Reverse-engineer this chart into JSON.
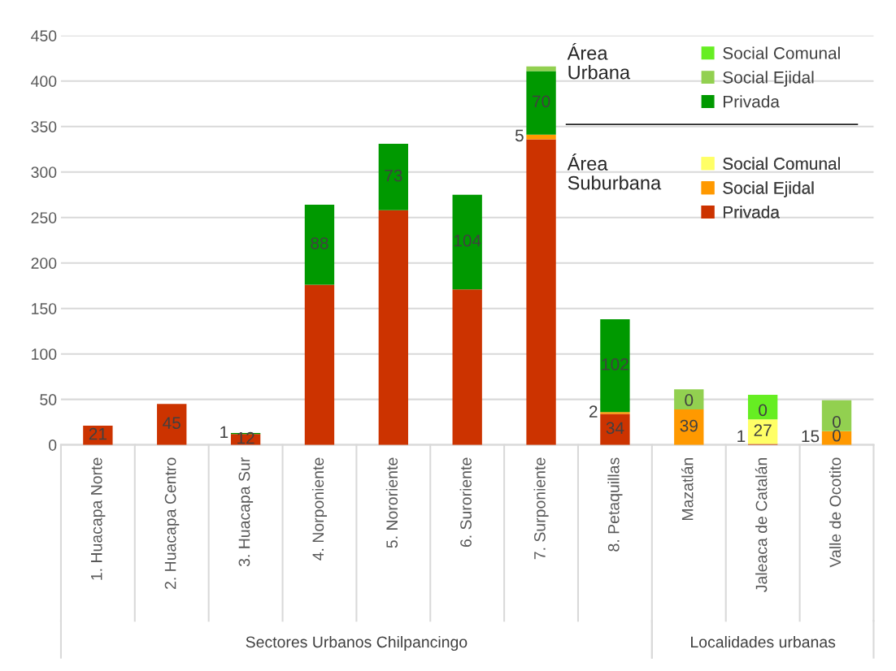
{
  "chart_data": {
    "type": "bar",
    "stacked": true,
    "categories": [
      "1. Huacapa Norte",
      "2. Huacapa Centro",
      "3. Huacapa Sur",
      "4. Norponiente",
      "5. Nororiente",
      "6. Suroriente",
      "7. Surponiente",
      "8. Petaquillas",
      "Mazatlán",
      "Jaleaca de Catalán",
      "Valle de Ocotito"
    ],
    "series": [
      {
        "name": "Privada",
        "color": "#cc3300",
        "values": [
          21,
          45,
          12,
          176,
          258,
          171,
          336,
          34,
          0,
          1,
          0
        ],
        "value_labels": [
          "21",
          "45",
          "12",
          null,
          null,
          null,
          null,
          "34",
          null,
          "1",
          "0"
        ]
      },
      {
        "name": "Social Ejidal",
        "color": "#ff9900",
        "values": [
          0,
          0,
          0,
          0,
          0,
          0,
          5,
          2,
          39,
          0,
          15
        ],
        "value_labels": [
          null,
          null,
          null,
          null,
          null,
          null,
          "5",
          "2",
          "39",
          null,
          "15"
        ]
      },
      {
        "name": "Social Comunal",
        "color": "#ffff66",
        "values": [
          0,
          0,
          0,
          0,
          0,
          0,
          0,
          0,
          0,
          27,
          0
        ],
        "value_labels": [
          null,
          null,
          null,
          null,
          null,
          null,
          null,
          null,
          null,
          "27",
          "0"
        ]
      },
      {
        "name": "Privada",
        "color": "#009900",
        "values": [
          0,
          0,
          1,
          88,
          73,
          104,
          70,
          102,
          0,
          0,
          0
        ],
        "value_labels": [
          null,
          null,
          "1",
          "88",
          "73",
          "104",
          "70",
          "102",
          "0",
          "0",
          null
        ]
      },
      {
        "name": "Social Ejidal",
        "color": "#92d050",
        "values": [
          0,
          0,
          0,
          0,
          0,
          0,
          5,
          0,
          22,
          0,
          34
        ],
        "value_labels": [
          null,
          null,
          null,
          null,
          null,
          null,
          null,
          null,
          null,
          null,
          null
        ]
      },
      {
        "name": "Social Comunal",
        "color": "#66ee22",
        "values": [
          0,
          0,
          0,
          0,
          0,
          0,
          0,
          0,
          0,
          27,
          0
        ],
        "value_labels": [
          null,
          null,
          null,
          null,
          null,
          null,
          null,
          null,
          null,
          null,
          null
        ]
      }
    ],
    "ylim": [
      0,
      450
    ],
    "yticks": [
      0,
      50,
      100,
      150,
      200,
      250,
      300,
      350,
      400,
      450
    ],
    "grid": "y",
    "legend": "top right",
    "annotations": [
      "Sectores Urbanos Chilpancingo",
      "Localidades urbanas",
      "Área Urbana",
      "Área Suburbana"
    ]
  }
}
